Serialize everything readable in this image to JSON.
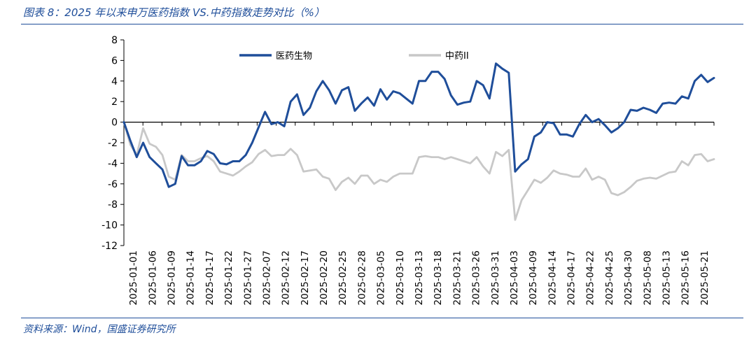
{
  "title": "图表 8：2025 年以来申万医药指数 VS.中药指数走势对比（%）",
  "source": "资料来源：Wind，国盛证券研究所",
  "colors": {
    "series1": "#1f4e9a",
    "series2": "#c8c8c8",
    "accent": "#1f4e9a"
  },
  "chart_data": {
    "type": "line",
    "ylim": [
      -12,
      8
    ],
    "yticks": [
      8,
      6,
      4,
      2,
      0,
      -2,
      -4,
      -6,
      -8,
      -10,
      -12
    ],
    "grid": false,
    "legend_position": "top",
    "x_ticklabels": [
      "2025-01-01",
      "2025-01-06",
      "2025-01-09",
      "2025-01-14",
      "2025-01-17",
      "2025-01-22",
      "2025-01-27",
      "2025-02-07",
      "2025-02-12",
      "2025-02-17",
      "2025-02-20",
      "2025-02-25",
      "2025-02-28",
      "2025-03-05",
      "2025-03-10",
      "2025-03-13",
      "2025-03-18",
      "2025-03-21",
      "2025-03-26",
      "2025-03-31",
      "2025-04-03",
      "2025-04-09",
      "2025-04-14",
      "2025-04-17",
      "2025-04-22",
      "2025-04-25",
      "2025-04-30",
      "2025-05-08",
      "2025-05-13",
      "2025-05-16",
      "2025-05-21"
    ],
    "series": [
      {
        "name": "医药生物",
        "values": [
          0.0,
          -1.8,
          -3.4,
          -2.0,
          -3.4,
          -4.0,
          -4.6,
          -6.3,
          -6.0,
          -3.3,
          -4.2,
          -4.2,
          -3.8,
          -2.8,
          -3.1,
          -4.0,
          -4.1,
          -3.8,
          -3.8,
          -3.2,
          -2.0,
          -0.5,
          1.0,
          -0.2,
          0.0,
          -0.4,
          2.0,
          2.7,
          0.7,
          1.4,
          3.0,
          4.0,
          3.1,
          1.8,
          3.1,
          3.4,
          1.1,
          1.8,
          2.4,
          1.6,
          3.2,
          2.2,
          3.0,
          2.8,
          2.3,
          1.8,
          4.0,
          4.0,
          4.9,
          4.9,
          4.2,
          2.6,
          1.7,
          1.9,
          2.0,
          4.0,
          3.6,
          2.3,
          5.7,
          5.2,
          4.8,
          -4.8,
          -4.1,
          -3.6,
          -1.4,
          -1.0,
          0.0,
          -0.1,
          -1.2,
          -1.2,
          -1.4,
          -0.2,
          0.7,
          0.0,
          0.3,
          -0.3,
          -1.0,
          -0.6,
          0.0,
          1.2,
          1.1,
          1.4,
          1.2,
          0.9,
          1.8,
          1.9,
          1.8,
          2.5,
          2.3,
          4.0,
          4.6,
          3.9,
          4.3
        ]
      },
      {
        "name": "中药II",
        "values": [
          0.0,
          -2.2,
          -3.2,
          -0.6,
          -2.1,
          -2.4,
          -3.2,
          -5.3,
          -5.6,
          -3.2,
          -3.8,
          -3.8,
          -3.5,
          -3.3,
          -3.8,
          -4.8,
          -5.0,
          -5.2,
          -4.8,
          -4.3,
          -3.9,
          -3.1,
          -2.7,
          -3.3,
          -3.2,
          -3.2,
          -2.6,
          -3.2,
          -4.8,
          -4.7,
          -4.6,
          -5.3,
          -5.5,
          -6.6,
          -5.8,
          -5.4,
          -6.0,
          -5.2,
          -5.2,
          -6.0,
          -5.6,
          -5.8,
          -5.3,
          -5.0,
          -5.0,
          -5.0,
          -3.4,
          -3.3,
          -3.4,
          -3.4,
          -3.6,
          -3.4,
          -3.6,
          -3.8,
          -4.0,
          -3.4,
          -4.3,
          -5.0,
          -2.9,
          -3.3,
          -2.7,
          -9.5,
          -7.6,
          -6.6,
          -5.6,
          -5.9,
          -5.4,
          -4.7,
          -5.0,
          -5.1,
          -5.3,
          -5.3,
          -4.5,
          -5.6,
          -5.3,
          -5.6,
          -6.9,
          -7.1,
          -6.8,
          -6.3,
          -5.7,
          -5.5,
          -5.4,
          -5.5,
          -5.2,
          -4.9,
          -4.8,
          -3.8,
          -4.2,
          -3.2,
          -3.1,
          -3.8,
          -3.6
        ]
      }
    ]
  }
}
